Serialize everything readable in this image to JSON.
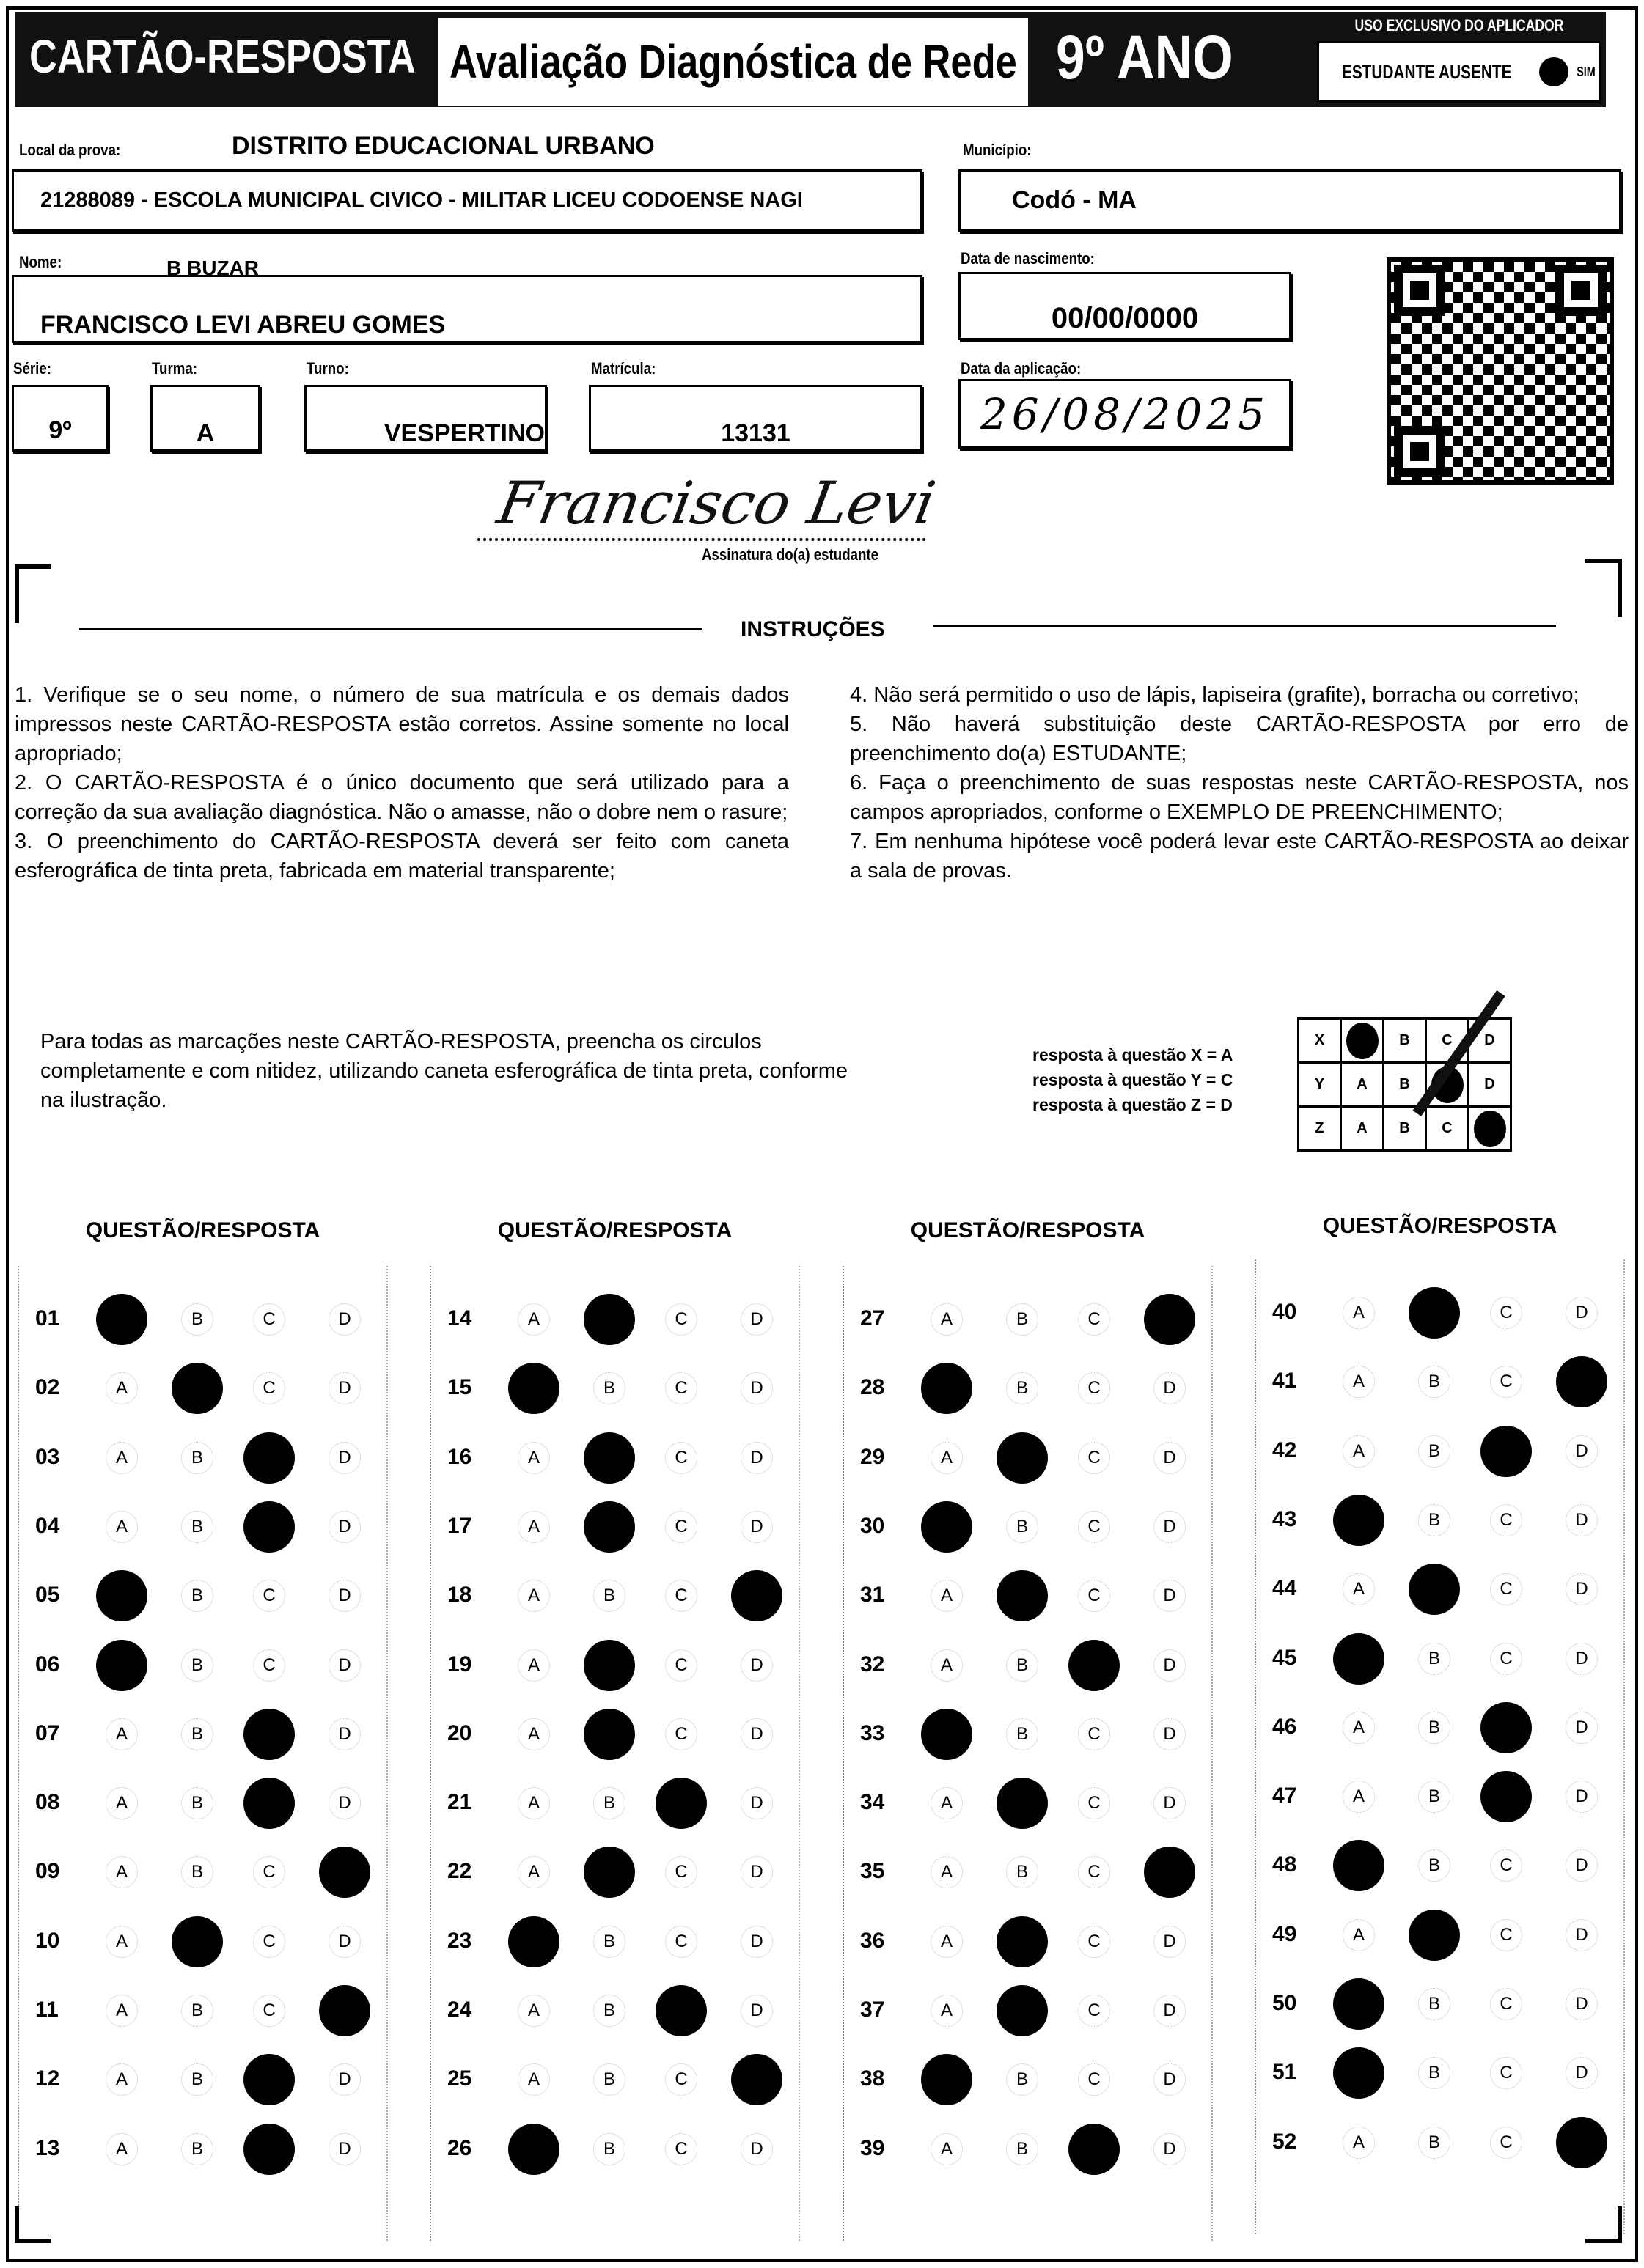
{
  "header": {
    "title": "CARTÃO-RESPOSTA",
    "subtitle": "Avaliação Diagnóstica de Rede",
    "grade": "9º ANO",
    "applicator_only": "USO EXCLUSIVO DO APLICADOR",
    "absent_label": "ESTUDANTE AUSENTE",
    "absent_option": "SIM"
  },
  "fields": {
    "local_label": "Local da prova:",
    "local_value": "DISTRITO EDUCACIONAL URBANO",
    "school": "21288089 - ESCOLA MUNICIPAL CIVICO - MILITAR LICEU CODOENSE NAGI",
    "municipio_label": "Município:",
    "municipio": "Codó - MA",
    "nome_label": "Nome:",
    "nome_extra": "B BUZAR",
    "nome": "FRANCISCO LEVI ABREU GOMES",
    "nascimento_label": "Data de nascimento:",
    "nascimento": "00/00/0000",
    "serie_label": "Série:",
    "serie": "9º",
    "turma_label": "Turma:",
    "turma": "A",
    "turno_label": "Turno:",
    "turno": "VESPERTINO",
    "matricula_label": "Matrícula:",
    "matricula": "13131",
    "aplicacao_label": "Data da aplicação:",
    "aplicacao": "26/08/2025",
    "signature": "Francisco Levi",
    "signature_label": "Assinatura do(a) estudante"
  },
  "instructions": {
    "title": "INSTRUÇÕES",
    "left": "1. Verifique se o seu nome, o número de sua matrícula e os demais dados impressos neste CARTÃO-RESPOSTA estão corretos. Assine somente no local apropriado;\n2. O CARTÃO-RESPOSTA é o único documento que será utilizado para a correção da sua avaliação diagnóstica. Não o amasse, não o dobre nem o rasure;\n3. O preenchimento do CARTÃO-RESPOSTA deverá ser feito com caneta esferográfica de tinta preta, fabricada em material transparente;",
    "right": "4. Não será permitido o uso de lápis, lapiseira (grafite), borracha ou corretivo;\n5. Não haverá substituição deste CARTÃO-RESPOSTA por erro de preenchimento do(a) ESTUDANTE;\n6. Faça o preenchimento de suas respostas neste CARTÃO-RESPOSTA, nos campos apropriados, conforme o EXEMPLO DE PREENCHIMENTO;\n7. Em nenhuma hipótese você poderá levar este CARTÃO-RESPOSTA ao deixar a sala de provas.",
    "fill_note": "Para todas as marcações neste CARTÃO-RESPOSTA, preencha os circulos completamente e com nitidez, utilizando caneta esferográfica de tinta preta, conforme na ilustração."
  },
  "example": {
    "legend": [
      "resposta à questão X = A",
      "resposta à questão Y = C",
      "resposta à questão Z = D"
    ],
    "rows": [
      {
        "q": "X",
        "marked": "A"
      },
      {
        "q": "Y",
        "marked": "C"
      },
      {
        "q": "Z",
        "marked": "D"
      }
    ]
  },
  "options": [
    "A",
    "B",
    "C",
    "D"
  ],
  "column_header": "QUESTÃO/RESPOSTA",
  "answers": [
    [
      [
        "01",
        "A"
      ],
      [
        "02",
        "B"
      ],
      [
        "03",
        "C"
      ],
      [
        "04",
        "C"
      ],
      [
        "05",
        "A"
      ],
      [
        "06",
        "A"
      ],
      [
        "07",
        "C"
      ],
      [
        "08",
        "C"
      ],
      [
        "09",
        "D"
      ],
      [
        "10",
        "B"
      ],
      [
        "11",
        "D"
      ],
      [
        "12",
        "C"
      ],
      [
        "13",
        "C"
      ]
    ],
    [
      [
        "14",
        "B"
      ],
      [
        "15",
        "A"
      ],
      [
        "16",
        "B"
      ],
      [
        "17",
        "B"
      ],
      [
        "18",
        "D"
      ],
      [
        "19",
        "B"
      ],
      [
        "20",
        "B"
      ],
      [
        "21",
        "C"
      ],
      [
        "22",
        "B"
      ],
      [
        "23",
        "A"
      ],
      [
        "24",
        "C"
      ],
      [
        "25",
        "D"
      ],
      [
        "26",
        "A"
      ]
    ],
    [
      [
        "27",
        "D"
      ],
      [
        "28",
        "A"
      ],
      [
        "29",
        "B"
      ],
      [
        "30",
        "A"
      ],
      [
        "31",
        "B"
      ],
      [
        "32",
        "C"
      ],
      [
        "33",
        "A"
      ],
      [
        "34",
        "B"
      ],
      [
        "35",
        "D"
      ],
      [
        "36",
        "B"
      ],
      [
        "37",
        "B"
      ],
      [
        "38",
        "A"
      ],
      [
        "39",
        "C"
      ]
    ],
    [
      [
        "40",
        "B"
      ],
      [
        "41",
        "D"
      ],
      [
        "42",
        "C"
      ],
      [
        "43",
        "A"
      ],
      [
        "44",
        "B"
      ],
      [
        "45",
        "A"
      ],
      [
        "46",
        "C"
      ],
      [
        "47",
        "C"
      ],
      [
        "48",
        "A"
      ],
      [
        "49",
        "B"
      ],
      [
        "50",
        "A"
      ],
      [
        "51",
        "A"
      ],
      [
        "52",
        "D"
      ]
    ]
  ]
}
